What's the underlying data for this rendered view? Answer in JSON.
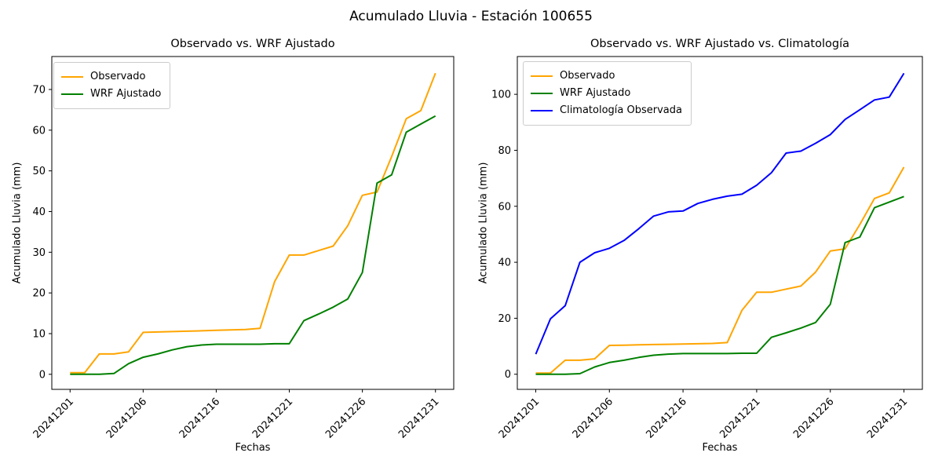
{
  "figure": {
    "suptitle": "Acumulado Lluvia - Estación 100655",
    "background": "#ffffff"
  },
  "chart_data": [
    {
      "type": "line",
      "title": "Observado vs. WRF Ajustado",
      "xlabel": "Fechas",
      "ylabel": "Acumulado Lluvia (mm)",
      "x_point_count": 26,
      "xticks": [
        {
          "index": 0,
          "label": "20241201"
        },
        {
          "index": 5,
          "label": "20241206"
        },
        {
          "index": 10,
          "label": "20241216"
        },
        {
          "index": 15,
          "label": "20241221"
        },
        {
          "index": 20,
          "label": "20241226"
        },
        {
          "index": 25,
          "label": "20241231"
        }
      ],
      "yticks": [
        0,
        10,
        20,
        30,
        40,
        50,
        60,
        70
      ],
      "xlim": [
        -1.25,
        26.25
      ],
      "ylim": [
        -3.7,
        78.1
      ],
      "grid": false,
      "legend_position": "upper-left",
      "series": [
        {
          "name": "Observado",
          "color": "#FFA500",
          "values": [
            0.4,
            0.4,
            5.0,
            5.0,
            5.5,
            10.3,
            10.4,
            10.5,
            10.6,
            10.7,
            10.8,
            10.9,
            11.0,
            11.3,
            22.8,
            29.3,
            29.3,
            30.4,
            31.5,
            36.5,
            44.0,
            44.8,
            53.5,
            62.8,
            64.8,
            74.0
          ]
        },
        {
          "name": "WRF Ajustado",
          "color": "#008000",
          "values": [
            0.0,
            0.0,
            0.0,
            0.2,
            2.6,
            4.2,
            5.0,
            6.0,
            6.8,
            7.2,
            7.4,
            7.4,
            7.4,
            7.4,
            7.5,
            7.5,
            13.2,
            14.8,
            16.5,
            18.5,
            25.0,
            47.0,
            49.0,
            59.5,
            61.5,
            63.5
          ]
        }
      ]
    },
    {
      "type": "line",
      "title": "Observado vs. WRF Ajustado vs. Climatología",
      "xlabel": "Fechas",
      "ylabel": "Acumulado Lluvia (mm)",
      "x_point_count": 26,
      "xticks": [
        {
          "index": 0,
          "label": "20241201"
        },
        {
          "index": 5,
          "label": "20241206"
        },
        {
          "index": 10,
          "label": "20241216"
        },
        {
          "index": 15,
          "label": "20241221"
        },
        {
          "index": 20,
          "label": "20241226"
        },
        {
          "index": 25,
          "label": "20241231"
        }
      ],
      "yticks": [
        0,
        20,
        40,
        60,
        80,
        100
      ],
      "xlim": [
        -1.25,
        26.25
      ],
      "ylim": [
        -5.4,
        113.5
      ],
      "grid": false,
      "legend_position": "upper-left",
      "series": [
        {
          "name": "Observado",
          "color": "#FFA500",
          "values": [
            0.4,
            0.4,
            5.0,
            5.0,
            5.5,
            10.3,
            10.4,
            10.5,
            10.6,
            10.7,
            10.8,
            10.9,
            11.0,
            11.3,
            22.8,
            29.3,
            29.3,
            30.4,
            31.5,
            36.5,
            44.0,
            44.8,
            53.5,
            62.8,
            64.8,
            74.0
          ]
        },
        {
          "name": "WRF Ajustado",
          "color": "#008000",
          "values": [
            0.0,
            0.0,
            0.0,
            0.2,
            2.6,
            4.2,
            5.0,
            6.0,
            6.8,
            7.2,
            7.4,
            7.4,
            7.4,
            7.4,
            7.5,
            7.5,
            13.2,
            14.8,
            16.5,
            18.5,
            25.0,
            47.0,
            49.0,
            59.5,
            61.5,
            63.5
          ]
        },
        {
          "name": "Climatología Observada",
          "color": "#0000FF",
          "values": [
            7.2,
            19.8,
            24.5,
            40.0,
            43.4,
            45.0,
            47.8,
            52.0,
            56.5,
            58.0,
            58.3,
            61.0,
            62.5,
            63.6,
            64.3,
            67.5,
            72.0,
            79.0,
            79.7,
            82.5,
            85.6,
            91.0,
            94.5,
            98.0,
            99.0,
            107.5
          ]
        }
      ]
    }
  ]
}
